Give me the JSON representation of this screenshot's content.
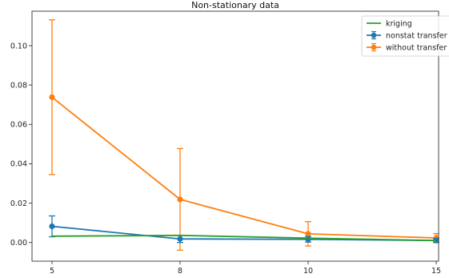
{
  "chart_data": {
    "type": "line",
    "title": "Non-stationary data",
    "xlabel": "",
    "ylabel": "",
    "x": [
      5,
      8,
      10,
      15
    ],
    "x_tick_labels": [
      "5",
      "8",
      "10",
      "15"
    ],
    "y_ticks": [
      0.0,
      0.02,
      0.04,
      0.06,
      0.08,
      0.1
    ],
    "y_tick_labels": [
      "0.00",
      "0.02",
      "0.04",
      "0.06",
      "0.08",
      "0.10"
    ],
    "ylim": [
      -0.0095,
      0.1175
    ],
    "grid": false,
    "legend_position": "top-right",
    "series": [
      {
        "name": "kriging",
        "color": "#2ca02c",
        "marker": "none",
        "values": [
          0.0032,
          0.0036,
          0.0022,
          0.001
        ]
      },
      {
        "name": "nonstat transfer",
        "color": "#1f77b4",
        "marker": "circle",
        "values": [
          0.0082,
          0.0018,
          0.0016,
          0.001
        ],
        "error": [
          0.0053,
          0.0018,
          0.0014,
          0.001
        ]
      },
      {
        "name": "without transfer",
        "color": "#ff7f0e",
        "marker": "circle",
        "values": [
          0.0738,
          0.0219,
          0.0044,
          0.0023
        ],
        "error": [
          0.0393,
          0.0258,
          0.0062,
          0.0022
        ]
      }
    ]
  }
}
